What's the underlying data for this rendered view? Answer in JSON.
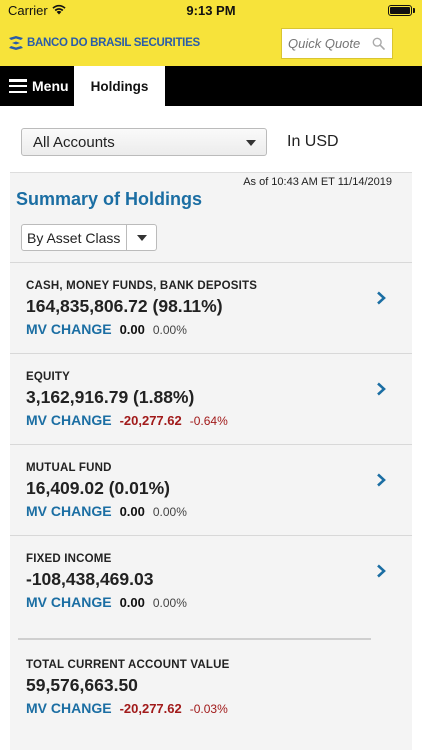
{
  "status": {
    "carrier": "Carrier",
    "time": "9:13 PM"
  },
  "header": {
    "logo_text": "BANCO DO BRASIL SECURITIES",
    "quote_placeholder": "Quick Quote"
  },
  "nav": {
    "menu_label": "Menu",
    "tab_label": "Holdings"
  },
  "account": {
    "selected": "All Accounts",
    "currency": "In USD"
  },
  "summary": {
    "as_of": "As of  10:43 AM ET 11/14/2019",
    "title": "Summary of Holdings",
    "group_by": "By Asset Class",
    "rows": [
      {
        "label": "CASH, MONEY FUNDS, BANK DEPOSITS",
        "value": "164,835,806.72 (98.11%)",
        "mv_label": "MV CHANGE",
        "mv_value": "0.00",
        "mv_pct": "0.00%"
      },
      {
        "label": "EQUITY",
        "value": "3,162,916.79 (1.88%)",
        "mv_label": "MV CHANGE",
        "mv_value": "-20,277.62",
        "mv_pct": "-0.64%"
      },
      {
        "label": "MUTUAL FUND",
        "value": "16,409.02 (0.01%)",
        "mv_label": "MV CHANGE",
        "mv_value": "0.00",
        "mv_pct": "0.00%"
      },
      {
        "label": "FIXED INCOME",
        "value": "-108,438,469.03",
        "mv_label": "MV CHANGE",
        "mv_value": "0.00",
        "mv_pct": "0.00%"
      }
    ],
    "total": {
      "label": "TOTAL CURRENT ACCOUNT VALUE",
      "value": "59,576,663.50",
      "mv_label": "MV CHANGE",
      "mv_value": "-20,277.62",
      "mv_pct": "-0.03%"
    }
  },
  "colors": {
    "brand_yellow": "#f7e33a",
    "brand_blue": "#1b6ea3",
    "negative_red": "#a11a1a",
    "nav_black": "#000000"
  }
}
